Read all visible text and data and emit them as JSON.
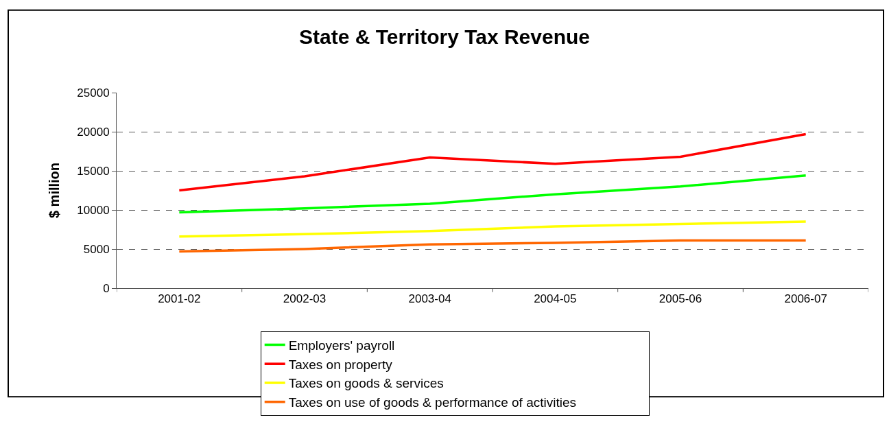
{
  "chart_data": {
    "type": "line",
    "title": "State & Territory Tax Revenue",
    "ylabel": "$ million",
    "categories": [
      "2001-02",
      "2002-03",
      "2003-04",
      "2004-05",
      "2005-06",
      "2006-07"
    ],
    "series": [
      {
        "name": "Employers' payroll",
        "color": "#00ff00",
        "values": [
          9700,
          10200,
          10800,
          12000,
          13000,
          14400
        ]
      },
      {
        "name": "Taxes on property",
        "color": "#ff0000",
        "values": [
          12500,
          14300,
          16700,
          15900,
          16800,
          19700
        ]
      },
      {
        "name": "Taxes on goods & services",
        "color": "#ffff00",
        "values": [
          6600,
          6900,
          7300,
          7900,
          8200,
          8500
        ]
      },
      {
        "name": "Taxes on use of goods & performance of activities",
        "color": "#ff6600",
        "values": [
          4700,
          5000,
          5600,
          5800,
          6100,
          6100
        ]
      }
    ],
    "ylim": [
      0,
      25000
    ],
    "yticks": [
      0,
      5000,
      10000,
      15000,
      20000,
      25000
    ],
    "grid": "y",
    "legend": "bottom",
    "marker": "none"
  }
}
